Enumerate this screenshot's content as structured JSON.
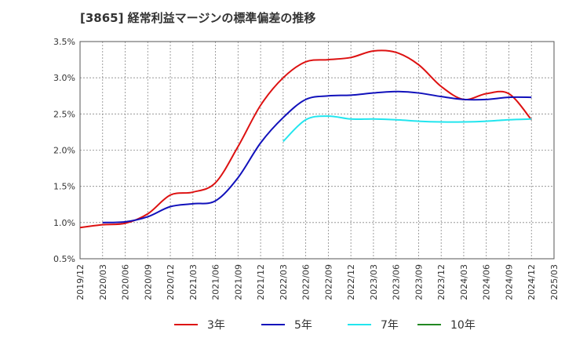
{
  "chart_data": {
    "type": "line",
    "title": "[3865]  経常利益マージンの標準偏差の推移",
    "xlabel": "",
    "ylabel": "",
    "x_ticks": [
      "2019/12",
      "2020/03",
      "2020/06",
      "2020/09",
      "2020/12",
      "2021/03",
      "2021/06",
      "2021/09",
      "2021/12",
      "2022/03",
      "2022/06",
      "2022/09",
      "2022/12",
      "2023/03",
      "2023/06",
      "2023/09",
      "2023/12",
      "2024/03",
      "2024/06",
      "2024/09",
      "2024/12",
      "2025/03"
    ],
    "y_ticks": [
      "0.5%",
      "1.0%",
      "1.5%",
      "2.0%",
      "2.5%",
      "3.0%",
      "3.5%"
    ],
    "ylim": [
      0.5,
      3.5
    ],
    "y_unit": "%",
    "grid": true,
    "legend_position": "bottom",
    "series": [
      {
        "name": "3年",
        "color": "#dd1111",
        "x": [
          "2019/12",
          "2020/03",
          "2020/06",
          "2020/09",
          "2020/12",
          "2021/03",
          "2021/06",
          "2021/09",
          "2021/12",
          "2022/03",
          "2022/06",
          "2022/09",
          "2022/12",
          "2023/03",
          "2023/06",
          "2023/09",
          "2023/12",
          "2024/03",
          "2024/06",
          "2024/09",
          "2024/12"
        ],
        "values": [
          0.93,
          0.97,
          0.99,
          1.12,
          1.38,
          1.42,
          1.55,
          2.05,
          2.62,
          3.0,
          3.22,
          3.25,
          3.28,
          3.37,
          3.35,
          3.18,
          2.88,
          2.7,
          2.78,
          2.78,
          2.42
        ]
      },
      {
        "name": "5年",
        "color": "#1111bb",
        "x": [
          "2020/03",
          "2020/06",
          "2020/09",
          "2020/12",
          "2021/03",
          "2021/06",
          "2021/09",
          "2021/12",
          "2022/03",
          "2022/06",
          "2022/09",
          "2022/12",
          "2023/03",
          "2023/06",
          "2023/09",
          "2023/12",
          "2024/03",
          "2024/06",
          "2024/09",
          "2024/12"
        ],
        "values": [
          1.0,
          1.01,
          1.08,
          1.22,
          1.26,
          1.3,
          1.62,
          2.1,
          2.45,
          2.7,
          2.75,
          2.76,
          2.79,
          2.81,
          2.79,
          2.74,
          2.7,
          2.7,
          2.73,
          2.73
        ]
      },
      {
        "name": "7年",
        "color": "#22e5ee",
        "x": [
          "2022/03",
          "2022/06",
          "2022/09",
          "2022/12",
          "2023/03",
          "2023/06",
          "2023/09",
          "2023/12",
          "2024/03",
          "2024/06",
          "2024/09",
          "2024/12"
        ],
        "values": [
          2.12,
          2.42,
          2.47,
          2.43,
          2.43,
          2.42,
          2.4,
          2.39,
          2.39,
          2.4,
          2.42,
          2.43
        ]
      },
      {
        "name": "10年",
        "color": "#228822",
        "x": [],
        "values": []
      }
    ]
  }
}
